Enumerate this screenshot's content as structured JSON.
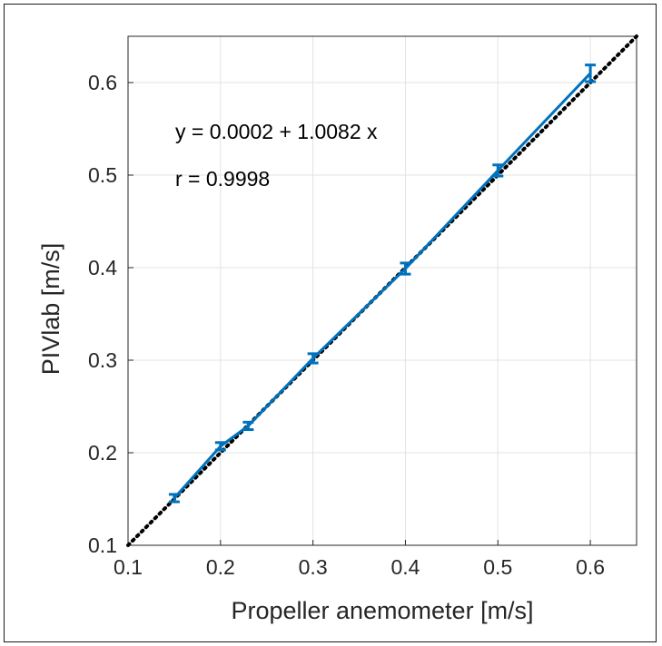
{
  "chart_data": {
    "type": "line",
    "xlabel": "Propeller anemometer [m/s]",
    "ylabel": "PIVlab [m/s]",
    "xlim": [
      0.1,
      0.65
    ],
    "ylim": [
      0.1,
      0.65
    ],
    "xticks": [
      "0.1",
      "0.2",
      "0.3",
      "0.4",
      "0.5",
      "0.6"
    ],
    "yticks": [
      "0.1",
      "0.2",
      "0.3",
      "0.4",
      "0.5",
      "0.6"
    ],
    "grid": true,
    "series": [
      {
        "x": [
          0.15,
          0.2,
          0.23,
          0.3,
          0.4,
          0.5,
          0.6
        ],
        "y": [
          0.151,
          0.207,
          0.229,
          0.302,
          0.399,
          0.505,
          0.61
        ],
        "yerr": [
          0.004,
          0.004,
          0.004,
          0.005,
          0.006,
          0.006,
          0.009
        ],
        "color": "#0072BD"
      }
    ],
    "reference_line": {
      "style": "dotted",
      "color": "#000000",
      "y_equals_x": true
    },
    "annotations": [
      {
        "text": "y = 0.0002 + 1.0082 x"
      },
      {
        "text": "r = 0.9998"
      }
    ]
  }
}
